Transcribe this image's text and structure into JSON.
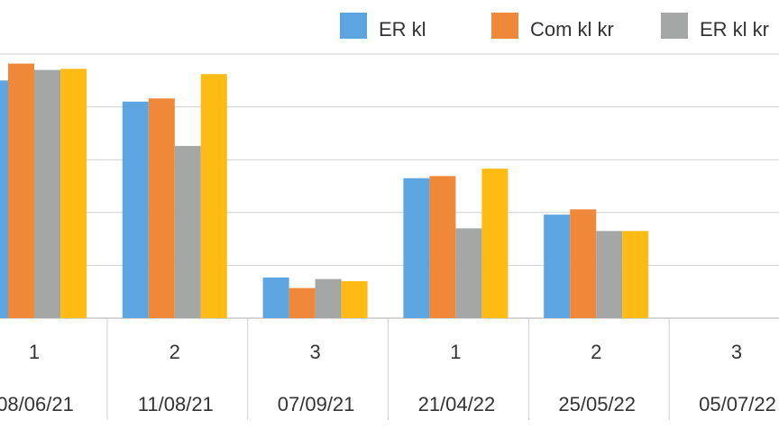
{
  "chart_data": {
    "type": "bar",
    "title": "",
    "xlabel": "",
    "ylabel": "",
    "ylim": [
      0,
      4.8
    ],
    "grid": true,
    "legend_placement": "top-right",
    "categories": [
      {
        "tick": "1",
        "date": "08/06/21"
      },
      {
        "tick": "2",
        "date": "11/08/21"
      },
      {
        "tick": "3",
        "date": "07/09/21"
      },
      {
        "tick": "1",
        "date": "21/04/22"
      },
      {
        "tick": "2",
        "date": "25/05/22"
      },
      {
        "tick": "3",
        "date": "05/07/22"
      }
    ],
    "series": [
      {
        "name": "ER kl",
        "color": "#5DA5E0",
        "values": [
          4.5,
          4.1,
          0.77,
          2.65,
          1.96,
          null
        ]
      },
      {
        "name": "Com kl kr",
        "color": "#F0883A",
        "values": [
          4.82,
          4.16,
          0.57,
          2.69,
          2.06,
          null
        ]
      },
      {
        "name": "ER kl kr",
        "color": "#A5A7A6",
        "values": [
          4.7,
          3.26,
          0.74,
          1.7,
          1.65,
          null
        ]
      },
      {
        "name": "",
        "color": "#FDBB13",
        "values": [
          4.72,
          4.62,
          0.7,
          2.83,
          1.65,
          null
        ]
      }
    ]
  }
}
